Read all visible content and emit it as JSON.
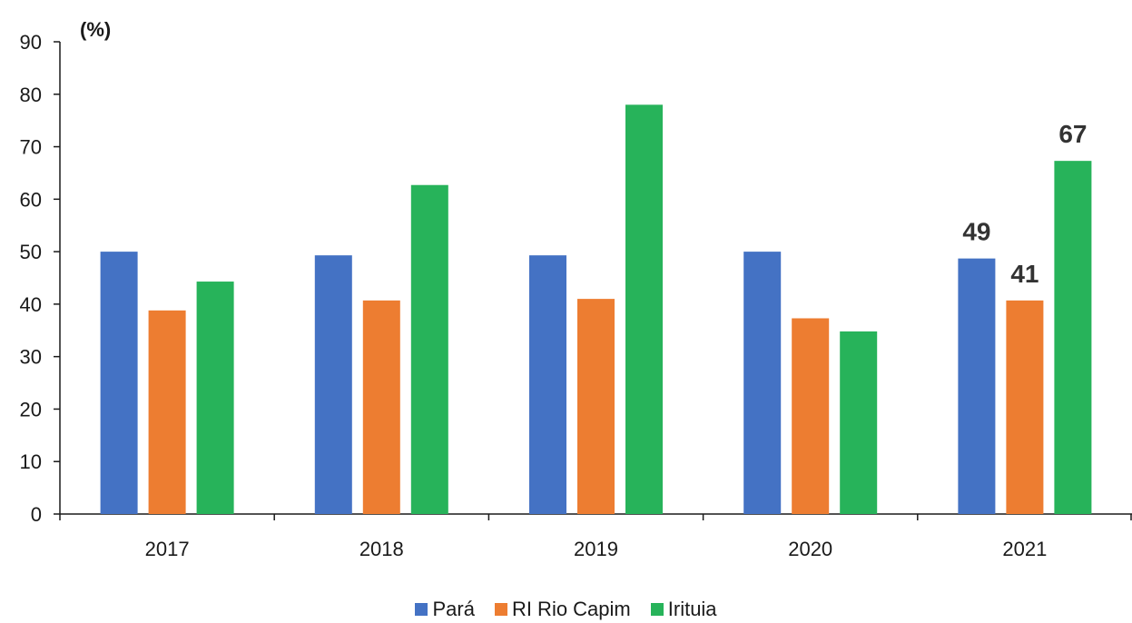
{
  "chart_data": {
    "type": "bar",
    "unit_label": "(%)",
    "categories": [
      "2017",
      "2018",
      "2019",
      "2020",
      "2021"
    ],
    "series": [
      {
        "name": "Pará",
        "color": "#4472c4",
        "values": [
          50,
          49.3,
          49.3,
          50,
          48.7
        ]
      },
      {
        "name": "RI Rio Capim",
        "color": "#ed7d31",
        "values": [
          38.8,
          40.7,
          41,
          37.3,
          40.7
        ]
      },
      {
        "name": "Irituia",
        "color": "#27b35a",
        "values": [
          44.3,
          62.7,
          78,
          34.8,
          67.3
        ]
      }
    ],
    "data_labels": [
      {
        "category": "2021",
        "series": "Pará",
        "text": "49"
      },
      {
        "category": "2021",
        "series": "RI Rio Capim",
        "text": "41"
      },
      {
        "category": "2021",
        "series": "Irituia",
        "text": "67"
      }
    ],
    "yticks": [
      "0",
      "10",
      "20",
      "30",
      "40",
      "50",
      "60",
      "70",
      "80",
      "90"
    ],
    "ylim": [
      0,
      90
    ],
    "grid": false,
    "legend_position": "bottom"
  }
}
